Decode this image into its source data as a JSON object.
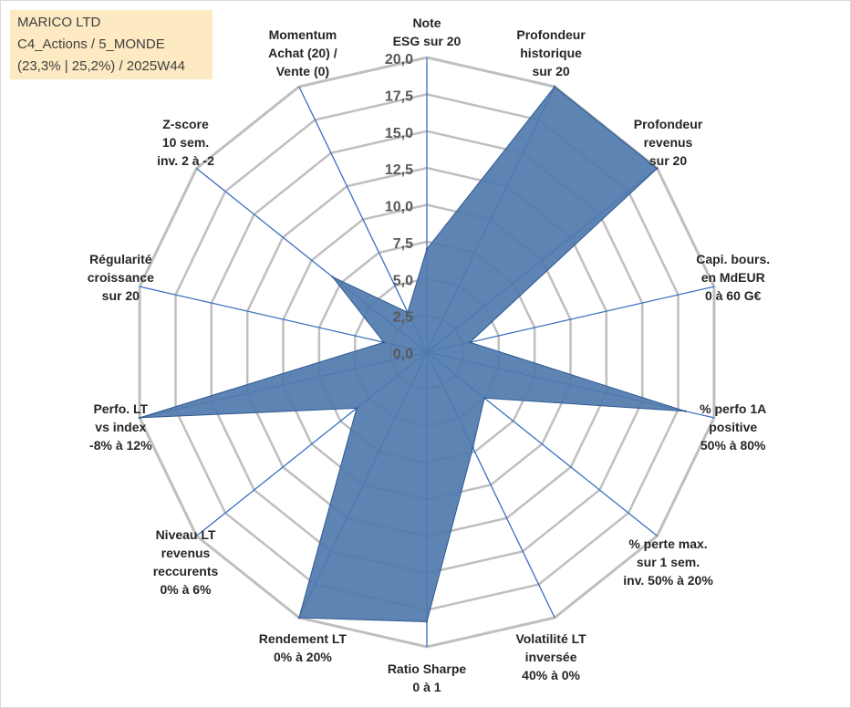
{
  "info_box": {
    "line1": "MARICO LTD",
    "line2": "C4_Actions / 5_MONDE",
    "line3": "(23,3% | 25,2%) / 2025W44"
  },
  "colors": {
    "series_fill": "#4f79ad",
    "series_stroke": "#2e5a91",
    "grid": "#bfbfbf",
    "spoke": "#3a6fbf",
    "info_box_bg": "#fde9c2"
  },
  "chart_data": {
    "type": "radar",
    "title": "",
    "r_range": [
      0,
      20
    ],
    "ticks": [
      "0,0",
      "2,5",
      "5,0",
      "7,5",
      "10,0",
      "12,5",
      "15,0",
      "17,5",
      "20,0"
    ],
    "tick_values": [
      0,
      2.5,
      5,
      7.5,
      10,
      12.5,
      15,
      17.5,
      20
    ],
    "grid": true,
    "legend": "none",
    "axes": [
      {
        "lines": [
          "Note",
          "ESG sur 20"
        ]
      },
      {
        "lines": [
          "Profondeur",
          "historique",
          "sur 20"
        ]
      },
      {
        "lines": [
          "Profondeur",
          "revenus",
          "sur 20"
        ]
      },
      {
        "lines": [
          "Capi. bours.",
          "en MdEUR",
          "0 à 60 G€"
        ]
      },
      {
        "lines": [
          "% perfo 1A",
          "positive",
          "50% à 80%"
        ]
      },
      {
        "lines": [
          "% perte max.",
          "sur 1 sem.",
          "inv. 50% à 20%"
        ]
      },
      {
        "lines": [
          "Volatilité LT",
          "inversée",
          "40% à 0%"
        ]
      },
      {
        "lines": [
          "Ratio Sharpe",
          "0 à 1"
        ]
      },
      {
        "lines": [
          "Rendement LT",
          "0% à 20%"
        ]
      },
      {
        "lines": [
          "Niveau LT",
          "revenus",
          "reccurents",
          "0% à 6%"
        ]
      },
      {
        "lines": [
          "Perfo. LT",
          "vs index",
          "-8% à 12%"
        ]
      },
      {
        "lines": [
          "Régularité",
          "croissance",
          "sur 20"
        ]
      },
      {
        "lines": [
          "Z-score",
          "10 sem.",
          "inv. 2 à -2"
        ]
      },
      {
        "lines": [
          "Momentum",
          "Achat (20) /",
          "Vente (0)"
        ]
      }
    ],
    "series": [
      {
        "values": [
          7,
          20,
          20,
          3,
          18,
          5,
          7.2,
          18.3,
          20,
          6.1,
          20,
          3,
          8.2,
          3
        ]
      }
    ]
  }
}
